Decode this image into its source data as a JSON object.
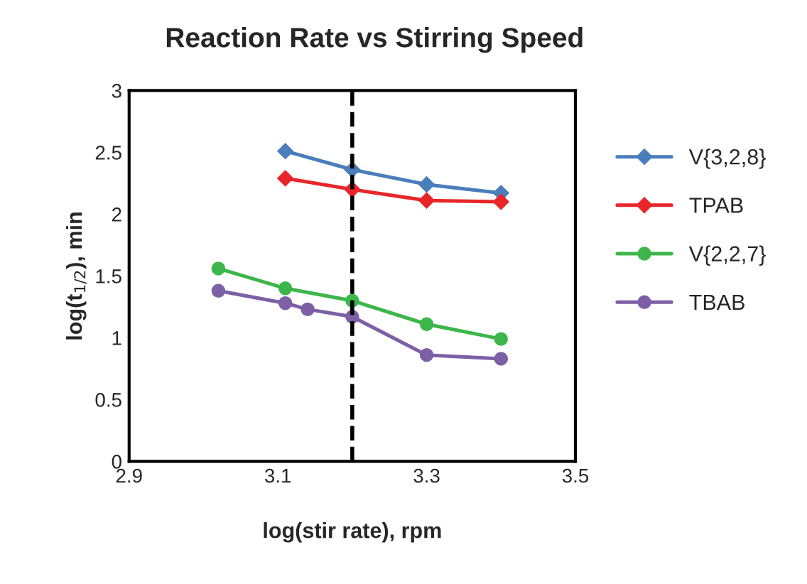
{
  "chart_data": {
    "type": "line",
    "title": "Reaction Rate vs Stirring Speed",
    "xlabel": "log(stir rate), rpm",
    "ylabel": "log(t$_{1/2}$), min",
    "xlim": [
      2.9,
      3.5
    ],
    "xticks": [
      2.9,
      3.1,
      3.3,
      3.5
    ],
    "ylim": [
      0,
      3
    ],
    "yticks": [
      0,
      0.5,
      1,
      1.5,
      2,
      2.5,
      3
    ],
    "grid": false,
    "legend": "right",
    "series": [
      {
        "name": "V{3,2,8}",
        "color": "#4a7ebb",
        "marker": "diamond",
        "x": [
          3.11,
          3.2,
          3.3,
          3.4
        ],
        "values": [
          2.51,
          2.36,
          2.24,
          2.17
        ]
      },
      {
        "name": "TPAB",
        "color": "#e8262a",
        "marker": "diamond",
        "x": [
          3.11,
          3.2,
          3.3,
          3.4
        ],
        "values": [
          2.29,
          2.2,
          2.11,
          2.1
        ]
      },
      {
        "name": "V{2,2,7}",
        "color": "#3cb64a",
        "marker": "circle",
        "x": [
          3.02,
          3.11,
          3.2,
          3.3,
          3.4
        ],
        "values": [
          1.56,
          1.4,
          1.3,
          1.11,
          0.99
        ]
      },
      {
        "name": "TBAB",
        "color": "#7d5fa6",
        "marker": "circle",
        "x": [
          3.02,
          3.11,
          3.14,
          3.2,
          3.3,
          3.4
        ],
        "values": [
          1.38,
          1.28,
          1.23,
          1.17,
          0.86,
          0.83
        ]
      }
    ],
    "ref_lines": [
      {
        "axis": "x",
        "value": 3.2,
        "color": "#000000",
        "line_style": "dashed"
      }
    ]
  }
}
